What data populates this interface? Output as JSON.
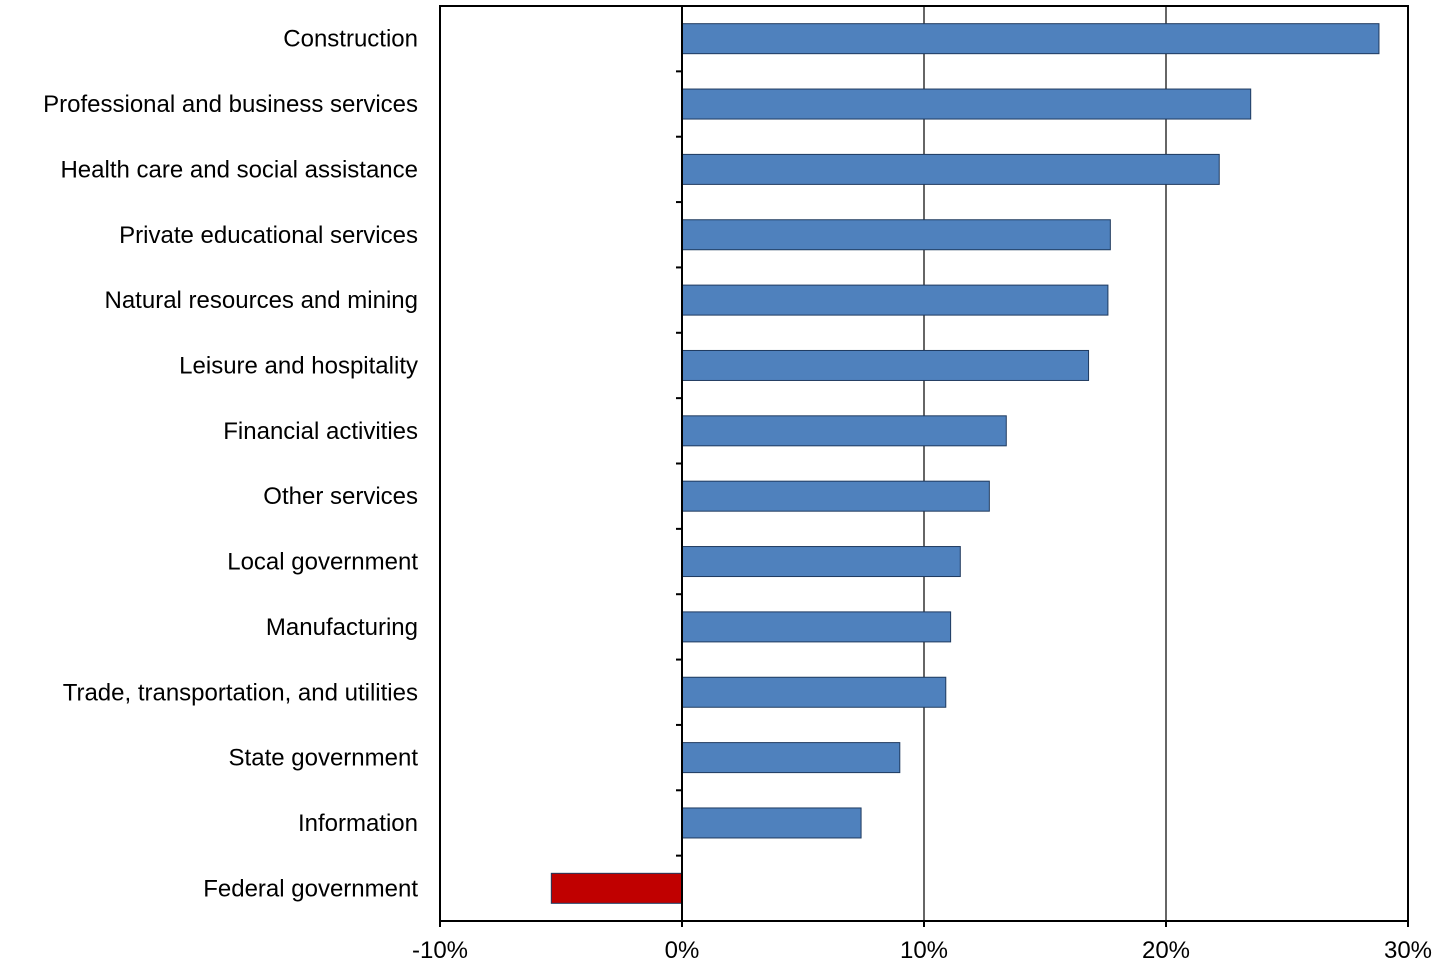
{
  "chart_data": {
    "type": "bar",
    "orientation": "horizontal",
    "title": "",
    "xlabel": "",
    "ylabel": "",
    "xlim": [
      -10,
      30
    ],
    "x_ticks": [
      -10,
      0,
      10,
      20,
      30
    ],
    "x_tick_labels": [
      "-10%",
      "0%",
      "10%",
      "20%",
      "30%"
    ],
    "grid": "vertical major gridlines",
    "legend": "none",
    "categories": [
      "Construction",
      "Professional and business services",
      "Health care and social assistance",
      "Private educational services",
      "Natural resources and mining",
      "Leisure and hospitality",
      "Financial activities",
      "Other services",
      "Local government",
      "Manufacturing",
      "Trade, transportation, and utilities",
      "State government",
      "Information",
      "Federal government"
    ],
    "values": [
      28.8,
      23.5,
      22.2,
      17.7,
      17.6,
      16.8,
      13.4,
      12.7,
      11.5,
      11.1,
      10.9,
      9.0,
      7.4,
      -5.4
    ],
    "colors": {
      "positive": "#4F81BD",
      "negative": "#C00000",
      "bar_stroke": "#1F3A5F",
      "grid": "#000000",
      "axis": "#000000"
    }
  }
}
